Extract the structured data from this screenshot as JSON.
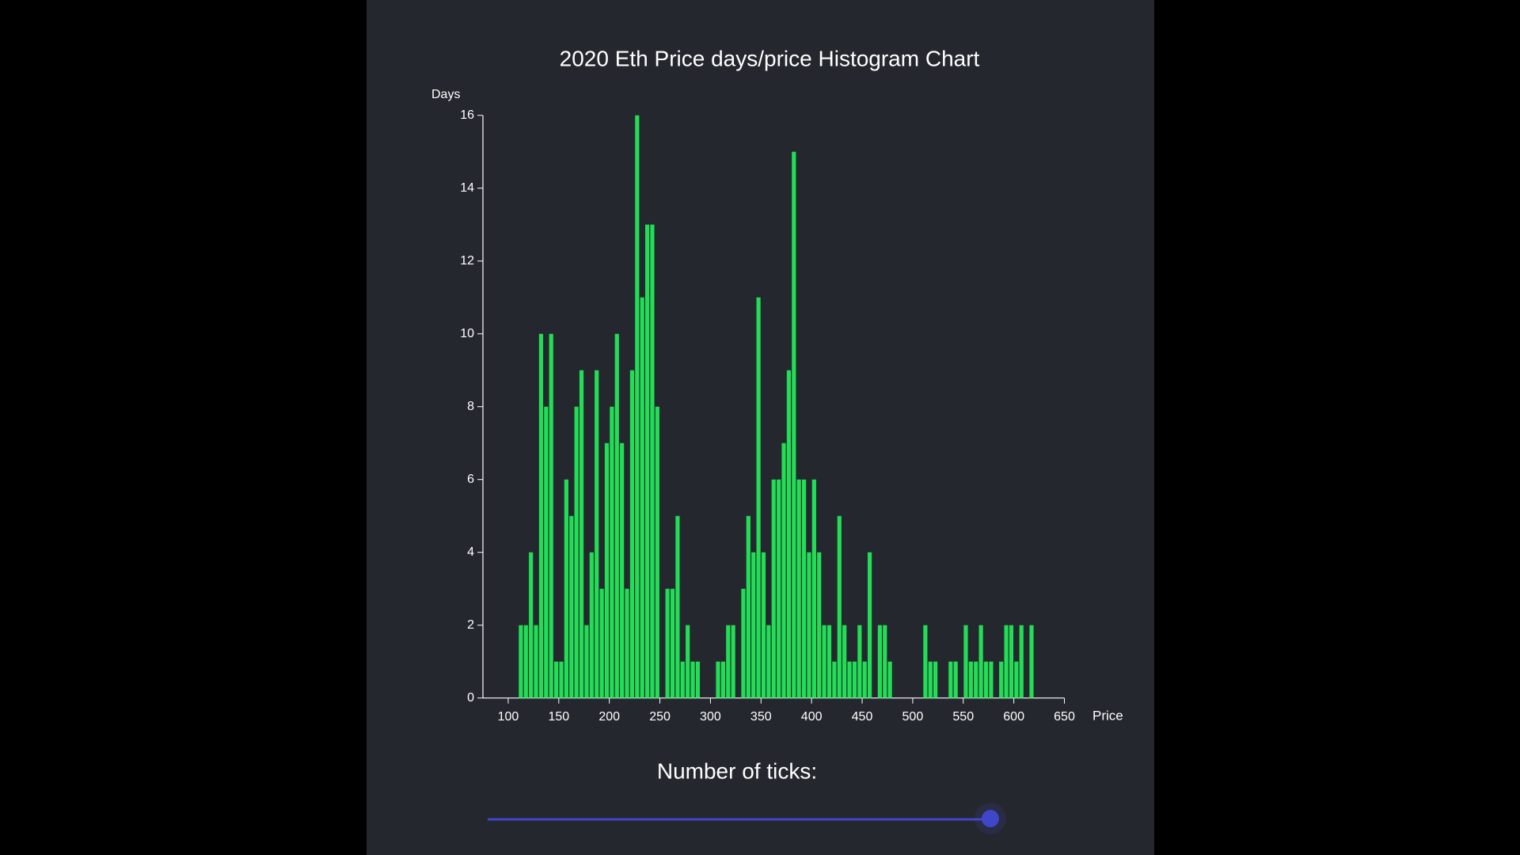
{
  "chart_data": {
    "type": "histogram",
    "title": "2020 Eth Price days/price Histogram Chart",
    "y_label": "Days",
    "x_label": "Price",
    "color": "#22dd55",
    "bins": [
      110,
      115,
      120,
      125,
      130,
      135,
      140,
      145,
      150,
      155,
      160,
      165,
      170,
      175,
      180,
      185,
      190,
      195,
      200,
      205,
      210,
      215,
      220,
      225,
      230,
      235,
      240,
      245,
      250,
      255,
      260,
      265,
      270,
      275,
      280,
      285,
      290,
      295,
      300,
      305,
      310,
      315,
      320,
      325,
      330,
      335,
      340,
      345,
      350,
      355,
      360,
      365,
      370,
      375,
      380,
      385,
      390,
      395,
      400,
      405,
      410,
      415,
      420,
      425,
      430,
      435,
      440,
      445,
      450,
      455,
      460,
      465,
      470,
      475,
      480,
      485,
      490,
      495,
      500,
      505,
      510,
      515,
      520,
      525,
      530,
      535,
      540,
      545,
      550,
      555,
      560,
      565,
      570,
      575,
      580,
      585,
      590,
      595,
      600,
      605,
      610,
      615,
      620
    ],
    "values": [
      2,
      2,
      4,
      2,
      10,
      8,
      10,
      1,
      1,
      6,
      5,
      8,
      9,
      2,
      4,
      9,
      3,
      7,
      8,
      10,
      7,
      3,
      9,
      16,
      11,
      13,
      13,
      8,
      0,
      3,
      3,
      5,
      1,
      2,
      1,
      1,
      0,
      0,
      0,
      1,
      1,
      2,
      2,
      0,
      3,
      5,
      4,
      11,
      4,
      2,
      6,
      6,
      7,
      9,
      15,
      6,
      6,
      4,
      6,
      4,
      2,
      2,
      1,
      5,
      2,
      1,
      1,
      2,
      1,
      4,
      0,
      2,
      2,
      1,
      0,
      0,
      0,
      0,
      0,
      0,
      2,
      1,
      1,
      0,
      0,
      1,
      1,
      0,
      2,
      1,
      1,
      2,
      1,
      1,
      0,
      1,
      2,
      2,
      1,
      2,
      0,
      2
    ],
    "xlim": [
      75,
      650
    ],
    "xticks": [
      100,
      150,
      200,
      250,
      300,
      350,
      400,
      450,
      500,
      550,
      600,
      650
    ],
    "ylim": [
      0,
      16
    ],
    "yticks": [
      0,
      2,
      4,
      6,
      8,
      10,
      12,
      14,
      16
    ]
  },
  "controls": {
    "slider_label": "Number of ticks:"
  }
}
